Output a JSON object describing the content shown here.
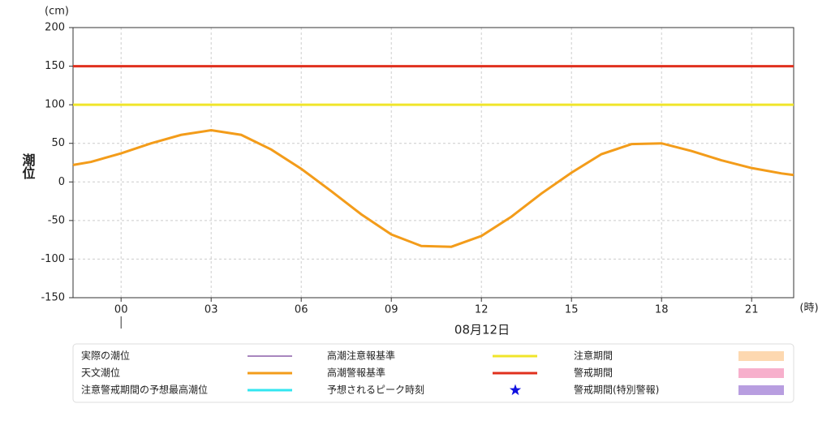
{
  "chart_data": {
    "type": "line",
    "y_label": "潮位",
    "y_unit": "(cm)",
    "x_unit": "(時)",
    "date_label": "08月12日",
    "xlim": [
      -1.6,
      22.4
    ],
    "ylim": [
      -150,
      200
    ],
    "xticks": [
      {
        "value": 0,
        "label": "00"
      },
      {
        "value": 3,
        "label": "03"
      },
      {
        "value": 6,
        "label": "06"
      },
      {
        "value": 9,
        "label": "09"
      },
      12,
      15,
      18,
      21
    ],
    "yticks": [
      -150,
      -100,
      -50,
      0,
      50,
      100,
      150,
      200
    ],
    "grid": true,
    "x": [
      -1.6,
      -1,
      0,
      1,
      2,
      3,
      4,
      5,
      6,
      7,
      8,
      9,
      10,
      11,
      12,
      13,
      14,
      15,
      16,
      17,
      18,
      19,
      20,
      21,
      22,
      22.4
    ],
    "series": [
      {
        "name": "天文潮位",
        "color": "#f39c1a",
        "values": [
          22,
          26,
          37,
          50,
          61,
          67,
          61,
          42,
          17,
          -12,
          -42,
          -68,
          -83,
          -84,
          -70,
          -45,
          -15,
          12,
          36,
          49,
          50,
          40,
          28,
          18,
          11,
          9
        ]
      }
    ],
    "reference_lines": [
      {
        "name": "高潮注意報基準",
        "value": 100,
        "color": "#f0e52a"
      },
      {
        "name": "高潮警報基準",
        "value": 150,
        "color": "#e0301e"
      }
    ],
    "legend_extra": [
      {
        "name": "実際の潮位",
        "color": "#8b5fa8",
        "kind": "line"
      },
      {
        "name": "注意警戒期間の予想最高潮位",
        "color": "#33e6f0",
        "kind": "line"
      },
      {
        "name": "予想されるピーク時刻",
        "color": "#1010e0",
        "kind": "star"
      },
      {
        "name": "注意期間",
        "color": "#fdd8b0",
        "kind": "box"
      },
      {
        "name": "警戒期間",
        "color": "#f7b0cc",
        "kind": "box"
      },
      {
        "name": "警戒期間(特別警報)",
        "color": "#b89ee0",
        "kind": "box"
      }
    ]
  }
}
